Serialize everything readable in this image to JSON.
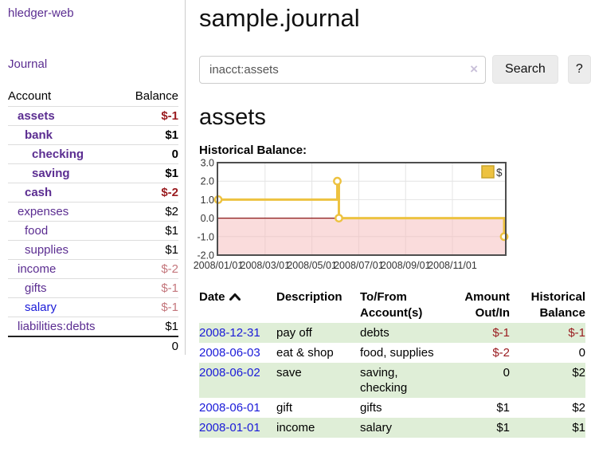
{
  "app": {
    "title": "hledger-web"
  },
  "sidebar": {
    "journal_label": "Journal",
    "accounts_table": {
      "headers": {
        "account": "Account",
        "balance": "Balance"
      },
      "rows": [
        {
          "name": "assets",
          "depth": 1,
          "bold": true,
          "balance": "$-1",
          "neg": "strong",
          "link_color": "purple"
        },
        {
          "name": "bank",
          "depth": 2,
          "bold": true,
          "balance": "$1",
          "neg": "none",
          "link_color": "purple"
        },
        {
          "name": "checking",
          "depth": 3,
          "bold": true,
          "balance": "0",
          "neg": "none",
          "link_color": "purple"
        },
        {
          "name": "saving",
          "depth": 3,
          "bold": true,
          "balance": "$1",
          "neg": "none",
          "link_color": "purple"
        },
        {
          "name": "cash",
          "depth": 2,
          "bold": true,
          "balance": "$-2",
          "neg": "strong",
          "link_color": "purple"
        },
        {
          "name": "expenses",
          "depth": 1,
          "bold": false,
          "balance": "$2",
          "neg": "none",
          "link_color": "purple"
        },
        {
          "name": "food",
          "depth": 2,
          "bold": false,
          "balance": "$1",
          "neg": "none",
          "link_color": "purple"
        },
        {
          "name": "supplies",
          "depth": 2,
          "bold": false,
          "balance": "$1",
          "neg": "none",
          "link_color": "purple"
        },
        {
          "name": "income",
          "depth": 1,
          "bold": false,
          "balance": "$-2",
          "neg": "soft",
          "link_color": "purple"
        },
        {
          "name": "gifts",
          "depth": 2,
          "bold": false,
          "balance": "$-1",
          "neg": "soft",
          "link_color": "purple"
        },
        {
          "name": "salary",
          "depth": 2,
          "bold": false,
          "balance": "$-1",
          "neg": "soft",
          "link_color": "blue"
        },
        {
          "name": "liabilities:debts",
          "depth": 1,
          "bold": false,
          "balance": "$1",
          "neg": "none",
          "link_color": "purple"
        }
      ],
      "total": "0"
    }
  },
  "main": {
    "title": "sample.journal",
    "search": {
      "value": "inacct:assets",
      "clear_icon": "×",
      "search_label": "Search",
      "help_label": "?"
    },
    "account_heading": "assets",
    "chart_label": "Historical Balance:"
  },
  "chart_data": {
    "type": "line",
    "style": "step",
    "title": "Historical Balance:",
    "legend": {
      "label": "$",
      "position": "top-right"
    },
    "x_ticks": [
      "2008/01/01",
      "2008/03/01",
      "2008/05/01",
      "2008/07/01",
      "2008/09/01",
      "2008/11/01"
    ],
    "y_ticks": [
      "3.0",
      "2.0",
      "1.0",
      "0.0",
      "-1.0",
      "-2.0"
    ],
    "ylim": [
      -2,
      3
    ],
    "x_start": "2008-01-01",
    "grid": true,
    "series": [
      {
        "name": "$",
        "color": "#edc240",
        "points": [
          [
            "2008-01-01",
            1
          ],
          [
            "2008-06-01",
            2
          ],
          [
            "2008-06-03",
            0
          ],
          [
            "2008-12-31",
            -1
          ]
        ]
      }
    ],
    "negative_region_fill": "#f6baba",
    "zero_line_color": "#8b1a1a",
    "plot_border_color": "#4e4e4e",
    "grid_color": "#e4e4e4"
  },
  "table": {
    "columns": [
      {
        "line1": "Date",
        "line2": "",
        "align": "left",
        "sorted": "asc"
      },
      {
        "line1": "Description",
        "line2": "",
        "align": "left"
      },
      {
        "line1": "To/From",
        "line2": "Account(s)",
        "align": "left"
      },
      {
        "line1": "Amount",
        "line2": "Out/In",
        "align": "right"
      },
      {
        "line1": "Historical",
        "line2": "Balance",
        "align": "right"
      }
    ],
    "rows": [
      {
        "date": "2008-12-31",
        "description": "pay off",
        "accounts": "debts",
        "amount": "$-1",
        "amount_neg": true,
        "balance": "$-1",
        "balance_neg": true,
        "stripe": true
      },
      {
        "date": "2008-06-03",
        "description": "eat & shop",
        "accounts": "food, supplies",
        "amount": "$-2",
        "amount_neg": true,
        "balance": "0",
        "balance_neg": false,
        "stripe": false
      },
      {
        "date": "2008-06-02",
        "description": "save",
        "accounts": "saving, checking",
        "amount": "0",
        "amount_neg": false,
        "balance": "$2",
        "balance_neg": false,
        "stripe": true
      },
      {
        "date": "2008-06-01",
        "description": "gift",
        "accounts": "gifts",
        "amount": "$1",
        "amount_neg": false,
        "balance": "$2",
        "balance_neg": false,
        "stripe": false
      },
      {
        "date": "2008-01-01",
        "description": "income",
        "accounts": "salary",
        "amount": "$1",
        "amount_neg": false,
        "balance": "$1",
        "balance_neg": false,
        "stripe": true
      }
    ]
  },
  "colors": {
    "link_purple": "#5b2d91",
    "link_blue": "#1a1ad8",
    "negative_strong": "#9a1c20",
    "negative_soft": "#c4767c",
    "row_stripe_green": "#dfeed7",
    "series_yellow": "#edc240",
    "divider_gray": "#cccccc"
  }
}
